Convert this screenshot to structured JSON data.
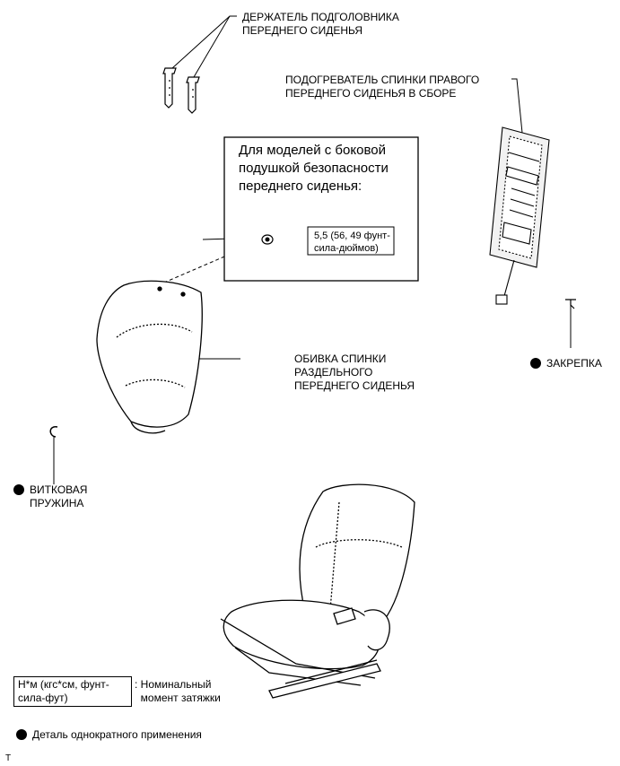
{
  "labels": {
    "headrest_holder": "ДЕРЖАТЕЛЬ ПОДГОЛОВНИКА\nПЕРЕДНЕГО СИДЕНЬЯ",
    "heater": "ПОДОГРЕВАТЕЛЬ СПИНКИ ПРАВОГО\nПЕРЕДНЕГО СИДЕНЬЯ В СБОРЕ",
    "cover": "ОБИВКА СПИНКИ\nРАЗДЕЛЬНОГО\nПЕРЕДНЕГО СИДЕНЬЯ",
    "clip": "ЗАКРЕПКА",
    "spring": "ВИТКОВАЯ\nПРУЖИНА"
  },
  "airbag_box": {
    "text": "Для моделей с боковой\nподушкой безопасности\nпереднего сиденья:",
    "torque": "5,5 (56, 49 фунт-\nсила-дюймов)"
  },
  "legend": {
    "torque_units": "Н*м (кгс*см, фунт-\nсила-фут)",
    "torque_desc": ": Номинальный\n  момент затяжки",
    "one_time": "Деталь однократного применения"
  },
  "footer_mark": "T"
}
